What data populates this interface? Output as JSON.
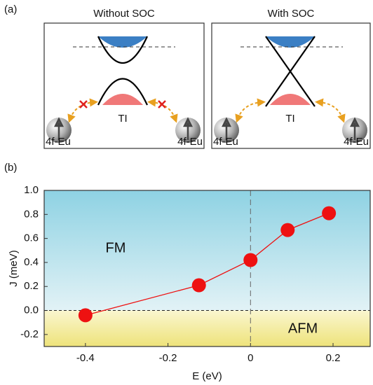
{
  "panel_a": {
    "label": "(a)",
    "panels": [
      {
        "title": "Without SOC",
        "center_label": "TI",
        "left_label": "4f-Eu",
        "right_label": "4f-Eu"
      },
      {
        "title": "With SOC",
        "center_label": "TI",
        "left_label": "4f-Eu",
        "right_label": "4f-Eu"
      }
    ]
  },
  "chart_data": {
    "type": "line",
    "panel_label": "(b)",
    "xlabel": "E (eV)",
    "ylabel": "J (meV)",
    "x": [
      -0.4,
      -0.125,
      0,
      0.09,
      0.19
    ],
    "values": [
      -0.04,
      0.21,
      0.42,
      0.67,
      0.81
    ],
    "color": "#ee1111",
    "xlim": [
      -0.5,
      0.29
    ],
    "ylim": [
      -0.3,
      1.0
    ],
    "xticks": [
      -0.4,
      -0.2,
      0,
      0.2
    ],
    "yticks": [
      -0.2,
      {
        "value": 0,
        "label": "0.0"
      },
      0.2,
      0.4,
      0.6,
      0.8,
      {
        "value": 1,
        "label": "1.0"
      }
    ],
    "annotations": [
      "FM",
      "AFM"
    ]
  }
}
